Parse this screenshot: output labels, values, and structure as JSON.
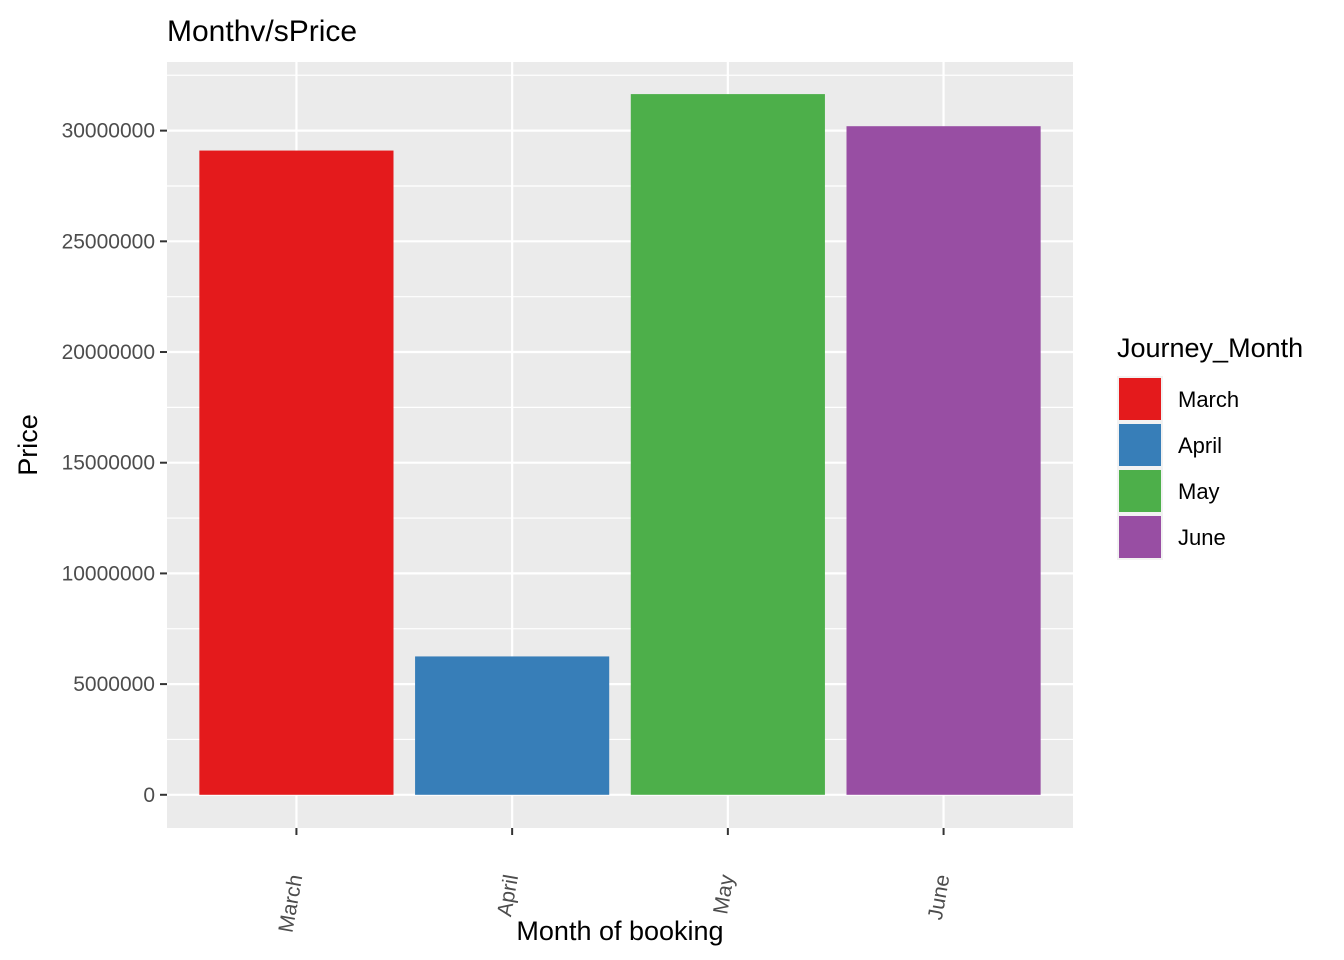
{
  "chart_data": {
    "type": "bar",
    "title": "Monthv/sPrice",
    "xlabel": "Month of booking",
    "ylabel": "Price",
    "categories": [
      "March",
      "April",
      "May",
      "June"
    ],
    "values": [
      29100000,
      6250000,
      31650000,
      30200000
    ],
    "colors": [
      "#E41A1C",
      "#377EB8",
      "#4DAF4A",
      "#984EA3"
    ],
    "ylim": [
      -1500000,
      33100000
    ],
    "yticks": [
      0,
      5000000,
      10000000,
      15000000,
      20000000,
      25000000,
      30000000
    ],
    "ytick_labels": [
      "0",
      "5000000",
      "10000000",
      "15000000",
      "20000000",
      "25000000",
      "30000000"
    ],
    "grid": true,
    "panel_background": "#EBEBEB",
    "legend": {
      "title": "Journey_Month",
      "position": "right",
      "entries": [
        "March",
        "April",
        "May",
        "June"
      ]
    }
  }
}
